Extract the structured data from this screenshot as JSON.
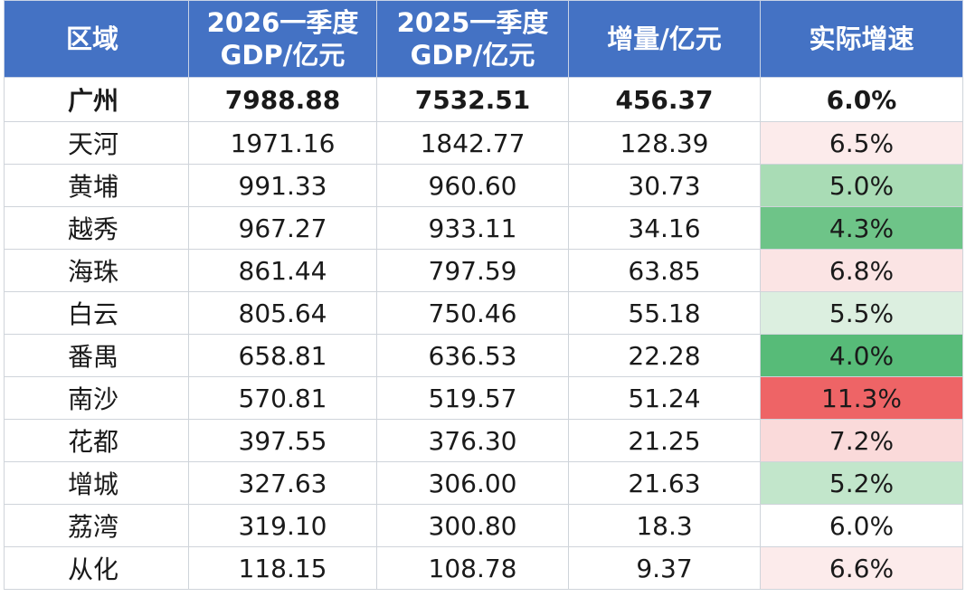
{
  "header": {
    "region": "区域",
    "gdp_2026_line1": "2026一季度",
    "gdp_2026_line2": "GDP/亿元",
    "gdp_2025_line1": "2025一季度",
    "gdp_2025_line2": "GDP/亿元",
    "increase": "增量/亿元",
    "growth": "实际增速"
  },
  "colors": {
    "header_bg": "#4472c4",
    "growth_scale": {
      "red_strong": "#ee6466",
      "red_light": "#fbe4e4",
      "red_faint": "#fdf0f0",
      "neutral": "#ffffff",
      "green_faint": "#e3f2e6",
      "green_light": "#cdebd5",
      "green_mid": "#a9dcb5",
      "green_strong": "#6ec488",
      "green_strongest": "#57bb78"
    }
  },
  "rows": [
    {
      "name": "广州",
      "gdp2026": "7988.88",
      "gdp2025": "7532.51",
      "increase": "456.37",
      "growth": "6.0%",
      "growth_color": "#ffffff",
      "bold": true
    },
    {
      "name": "天河",
      "gdp2026": "1971.16",
      "gdp2025": "1842.77",
      "increase": "128.39",
      "growth": "6.5%",
      "growth_color": "#fcebeb",
      "bold": false
    },
    {
      "name": "黄埔",
      "gdp2026": "991.33",
      "gdp2025": "960.60",
      "increase": "30.73",
      "growth": "5.0%",
      "growth_color": "#a9dcb5",
      "bold": false
    },
    {
      "name": "越秀",
      "gdp2026": "967.27",
      "gdp2025": "933.11",
      "increase": "34.16",
      "growth": "4.3%",
      "growth_color": "#6ec488",
      "bold": false
    },
    {
      "name": "海珠",
      "gdp2026": "861.44",
      "gdp2025": "797.59",
      "increase": "63.85",
      "growth": "6.8%",
      "growth_color": "#fbe4e4",
      "bold": false
    },
    {
      "name": "白云",
      "gdp2026": "805.64",
      "gdp2025": "750.46",
      "increase": "55.18",
      "growth": "5.5%",
      "growth_color": "#dcefe0",
      "bold": false
    },
    {
      "name": "番禺",
      "gdp2026": "658.81",
      "gdp2025": "636.53",
      "increase": "22.28",
      "growth": "4.0%",
      "growth_color": "#57bb78",
      "bold": false
    },
    {
      "name": "南沙",
      "gdp2026": "570.81",
      "gdp2025": "519.57",
      "increase": "51.24",
      "growth": "11.3%",
      "growth_color": "#ee6466",
      "bold": false
    },
    {
      "name": "花都",
      "gdp2026": "397.55",
      "gdp2025": "376.30",
      "increase": "21.25",
      "growth": "7.2%",
      "growth_color": "#fadada",
      "bold": false
    },
    {
      "name": "增城",
      "gdp2026": "327.63",
      "gdp2025": "306.00",
      "increase": "21.63",
      "growth": "5.2%",
      "growth_color": "#c2e6cb",
      "bold": false
    },
    {
      "name": "荔湾",
      "gdp2026": "319.10",
      "gdp2025": "300.80",
      "increase": "18.3",
      "growth": "6.0%",
      "growth_color": "#ffffff",
      "bold": false
    },
    {
      "name": "从化",
      "gdp2026": "118.15",
      "gdp2025": "108.78",
      "increase": "9.37",
      "growth": "6.6%",
      "growth_color": "#fcebeb",
      "bold": false
    }
  ]
}
